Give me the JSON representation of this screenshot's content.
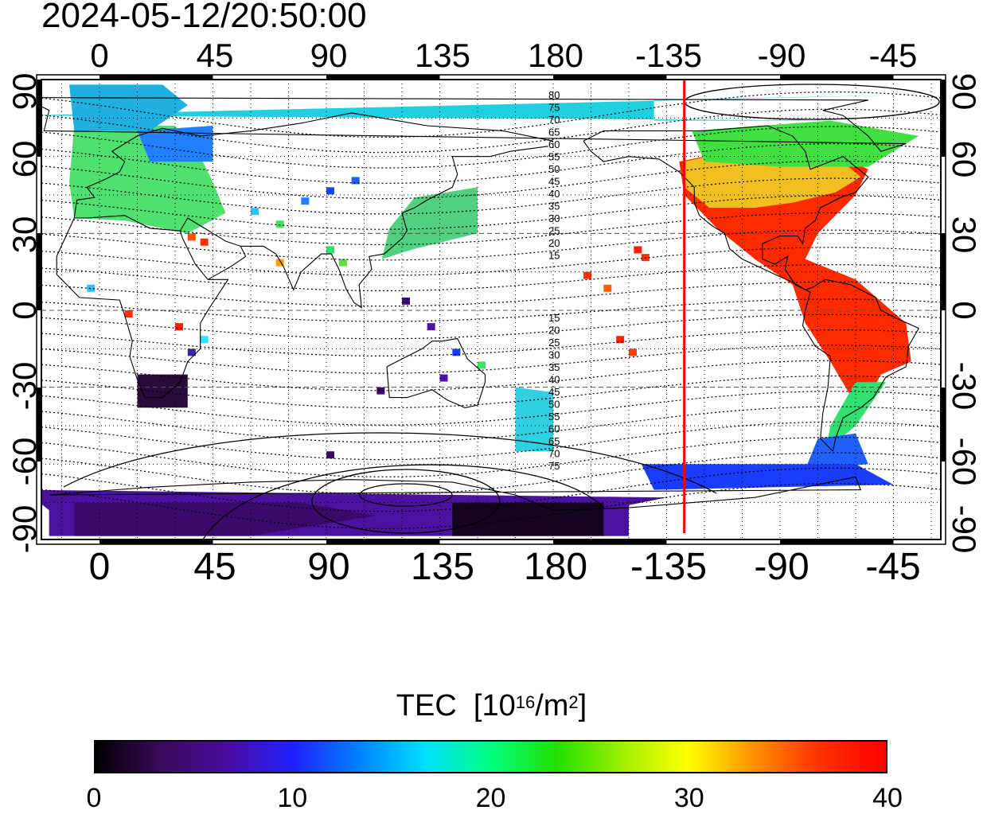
{
  "timestamp": "2024-05-12/20:50:00",
  "map": {
    "lon_ticks_top": [
      "0",
      "45",
      "90",
      "135",
      "180",
      "-135",
      "-90",
      "-45"
    ],
    "lon_ticks_bottom": [
      "0",
      "45",
      "90",
      "135",
      "180",
      "-135",
      "-90",
      "-45"
    ],
    "lat_ticks_left": [
      "90",
      "60",
      "30",
      "0",
      "-30",
      "-60",
      "-90"
    ],
    "lat_ticks_right": [
      "90",
      "60",
      "30",
      "0",
      "-30",
      "-60",
      "-90"
    ],
    "contour_labels_north": [
      "80",
      "75",
      "70",
      "65",
      "60",
      "55",
      "50",
      "45",
      "40",
      "35",
      "30",
      "25",
      "20",
      "15"
    ],
    "contour_labels_south": [
      "15",
      "20",
      "25",
      "30",
      "35",
      "40",
      "45",
      "50",
      "55",
      "60",
      "65",
      "70",
      "75"
    ],
    "terminator_longitude": -128,
    "terminator_color": "#ff0000"
  },
  "colorbar": {
    "label": "TEC",
    "unit_prefix": "[10",
    "unit_exp": "16",
    "unit_mid": "/m",
    "unit_exp2": "2",
    "unit_suffix": "]",
    "ticks": [
      "0",
      "10",
      "20",
      "30",
      "40"
    ],
    "min": 0,
    "max": 40,
    "colors": [
      "#000000",
      "#3a0a5a",
      "#4b0aa0",
      "#2020ff",
      "#0080ff",
      "#00e0ff",
      "#00ff80",
      "#20e000",
      "#a0f000",
      "#ffff00",
      "#ff9000",
      "#ff3000",
      "#ff0000"
    ]
  }
}
